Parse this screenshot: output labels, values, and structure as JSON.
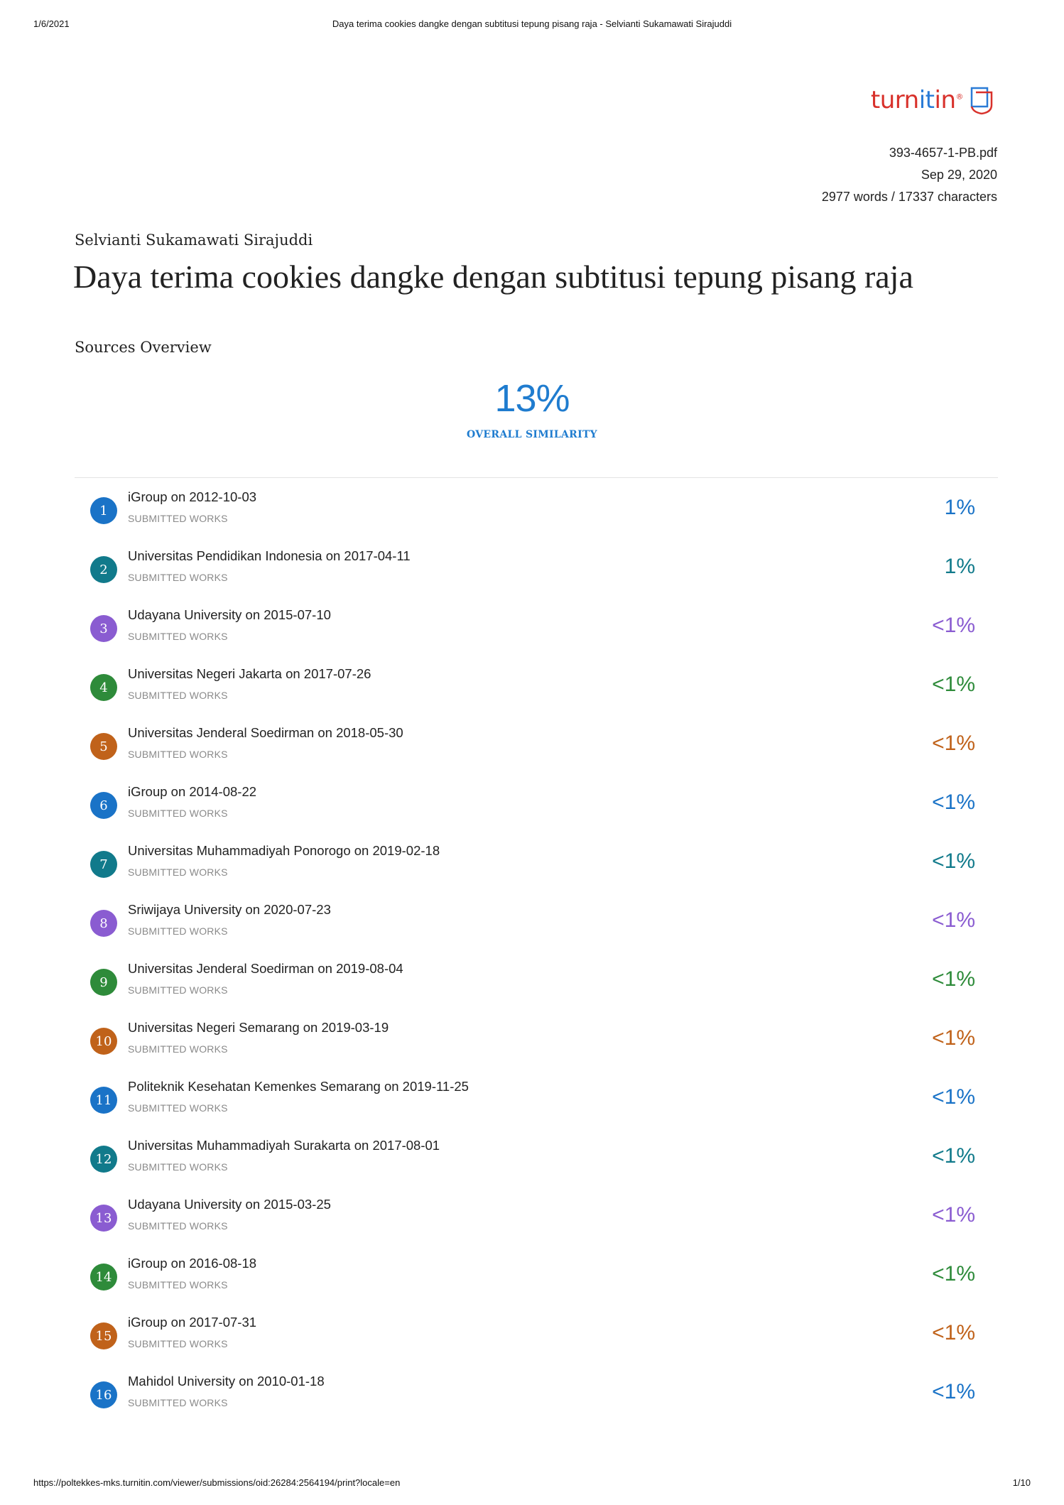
{
  "print_header": {
    "date": "1/6/2021",
    "title": "Daya terima cookies dangke dengan subtitusi tepung pisang raja - Selvianti Sukamawati Sirajuddi"
  },
  "brand": {
    "logo_text_a": "turn",
    "logo_text_b": "it",
    "logo_text_c": "in",
    "logo_mark": "®"
  },
  "meta": {
    "filename": "393-4657-1-PB.pdf",
    "date": "Sep 29, 2020",
    "counts": "2977 words / 17337 characters"
  },
  "author": "Selvianti Sukamawati Sirajuddi",
  "title": "Daya terima cookies dangke dengan subtitusi tepung pisang raja",
  "sources_overview": {
    "heading": "Sources Overview",
    "overall_value": "13%",
    "overall_label": "OVERALL SIMILARITY"
  },
  "colors": {
    "blue": "#1a73c7",
    "teal": "#117a8b",
    "purple": "#8a5cd1",
    "green": "#2e8b3a",
    "orange": "#c0621a"
  },
  "sources": [
    {
      "num": "1",
      "name": "iGroup on 2012-10-03",
      "type": "SUBMITTED WORKS",
      "pct": "1%",
      "color": "#1a73c7"
    },
    {
      "num": "2",
      "name": "Universitas Pendidikan Indonesia on 2017-04-11",
      "type": "SUBMITTED WORKS",
      "pct": "1%",
      "color": "#117a8b"
    },
    {
      "num": "3",
      "name": "Udayana University on 2015-07-10",
      "type": "SUBMITTED WORKS",
      "pct": "<1%",
      "color": "#8a5cd1"
    },
    {
      "num": "4",
      "name": "Universitas Negeri Jakarta on 2017-07-26",
      "type": "SUBMITTED WORKS",
      "pct": "<1%",
      "color": "#2e8b3a"
    },
    {
      "num": "5",
      "name": "Universitas Jenderal Soedirman on 2018-05-30",
      "type": "SUBMITTED WORKS",
      "pct": "<1%",
      "color": "#c0621a"
    },
    {
      "num": "6",
      "name": "iGroup on 2014-08-22",
      "type": "SUBMITTED WORKS",
      "pct": "<1%",
      "color": "#1a73c7"
    },
    {
      "num": "7",
      "name": "Universitas Muhammadiyah Ponorogo on 2019-02-18",
      "type": "SUBMITTED WORKS",
      "pct": "<1%",
      "color": "#117a8b"
    },
    {
      "num": "8",
      "name": "Sriwijaya University on 2020-07-23",
      "type": "SUBMITTED WORKS",
      "pct": "<1%",
      "color": "#8a5cd1"
    },
    {
      "num": "9",
      "name": "Universitas Jenderal Soedirman on 2019-08-04",
      "type": "SUBMITTED WORKS",
      "pct": "<1%",
      "color": "#2e8b3a"
    },
    {
      "num": "10",
      "name": "Universitas Negeri Semarang on 2019-03-19",
      "type": "SUBMITTED WORKS",
      "pct": "<1%",
      "color": "#c0621a"
    },
    {
      "num": "11",
      "name": "Politeknik Kesehatan Kemenkes Semarang on 2019-11-25",
      "type": "SUBMITTED WORKS",
      "pct": "<1%",
      "color": "#1a73c7"
    },
    {
      "num": "12",
      "name": "Universitas Muhammadiyah Surakarta on 2017-08-01",
      "type": "SUBMITTED WORKS",
      "pct": "<1%",
      "color": "#117a8b"
    },
    {
      "num": "13",
      "name": "Udayana University on 2015-03-25",
      "type": "SUBMITTED WORKS",
      "pct": "<1%",
      "color": "#8a5cd1"
    },
    {
      "num": "14",
      "name": "iGroup on 2016-08-18",
      "type": "SUBMITTED WORKS",
      "pct": "<1%",
      "color": "#2e8b3a"
    },
    {
      "num": "15",
      "name": "iGroup on 2017-07-31",
      "type": "SUBMITTED WORKS",
      "pct": "<1%",
      "color": "#c0621a"
    },
    {
      "num": "16",
      "name": "Mahidol University on 2010-01-18",
      "type": "SUBMITTED WORKS",
      "pct": "<1%",
      "color": "#1a73c7"
    }
  ],
  "print_footer": {
    "url": "https://poltekkes-mks.turnitin.com/viewer/submissions/oid:26284:2564194/print?locale=en",
    "page": "1/10"
  }
}
